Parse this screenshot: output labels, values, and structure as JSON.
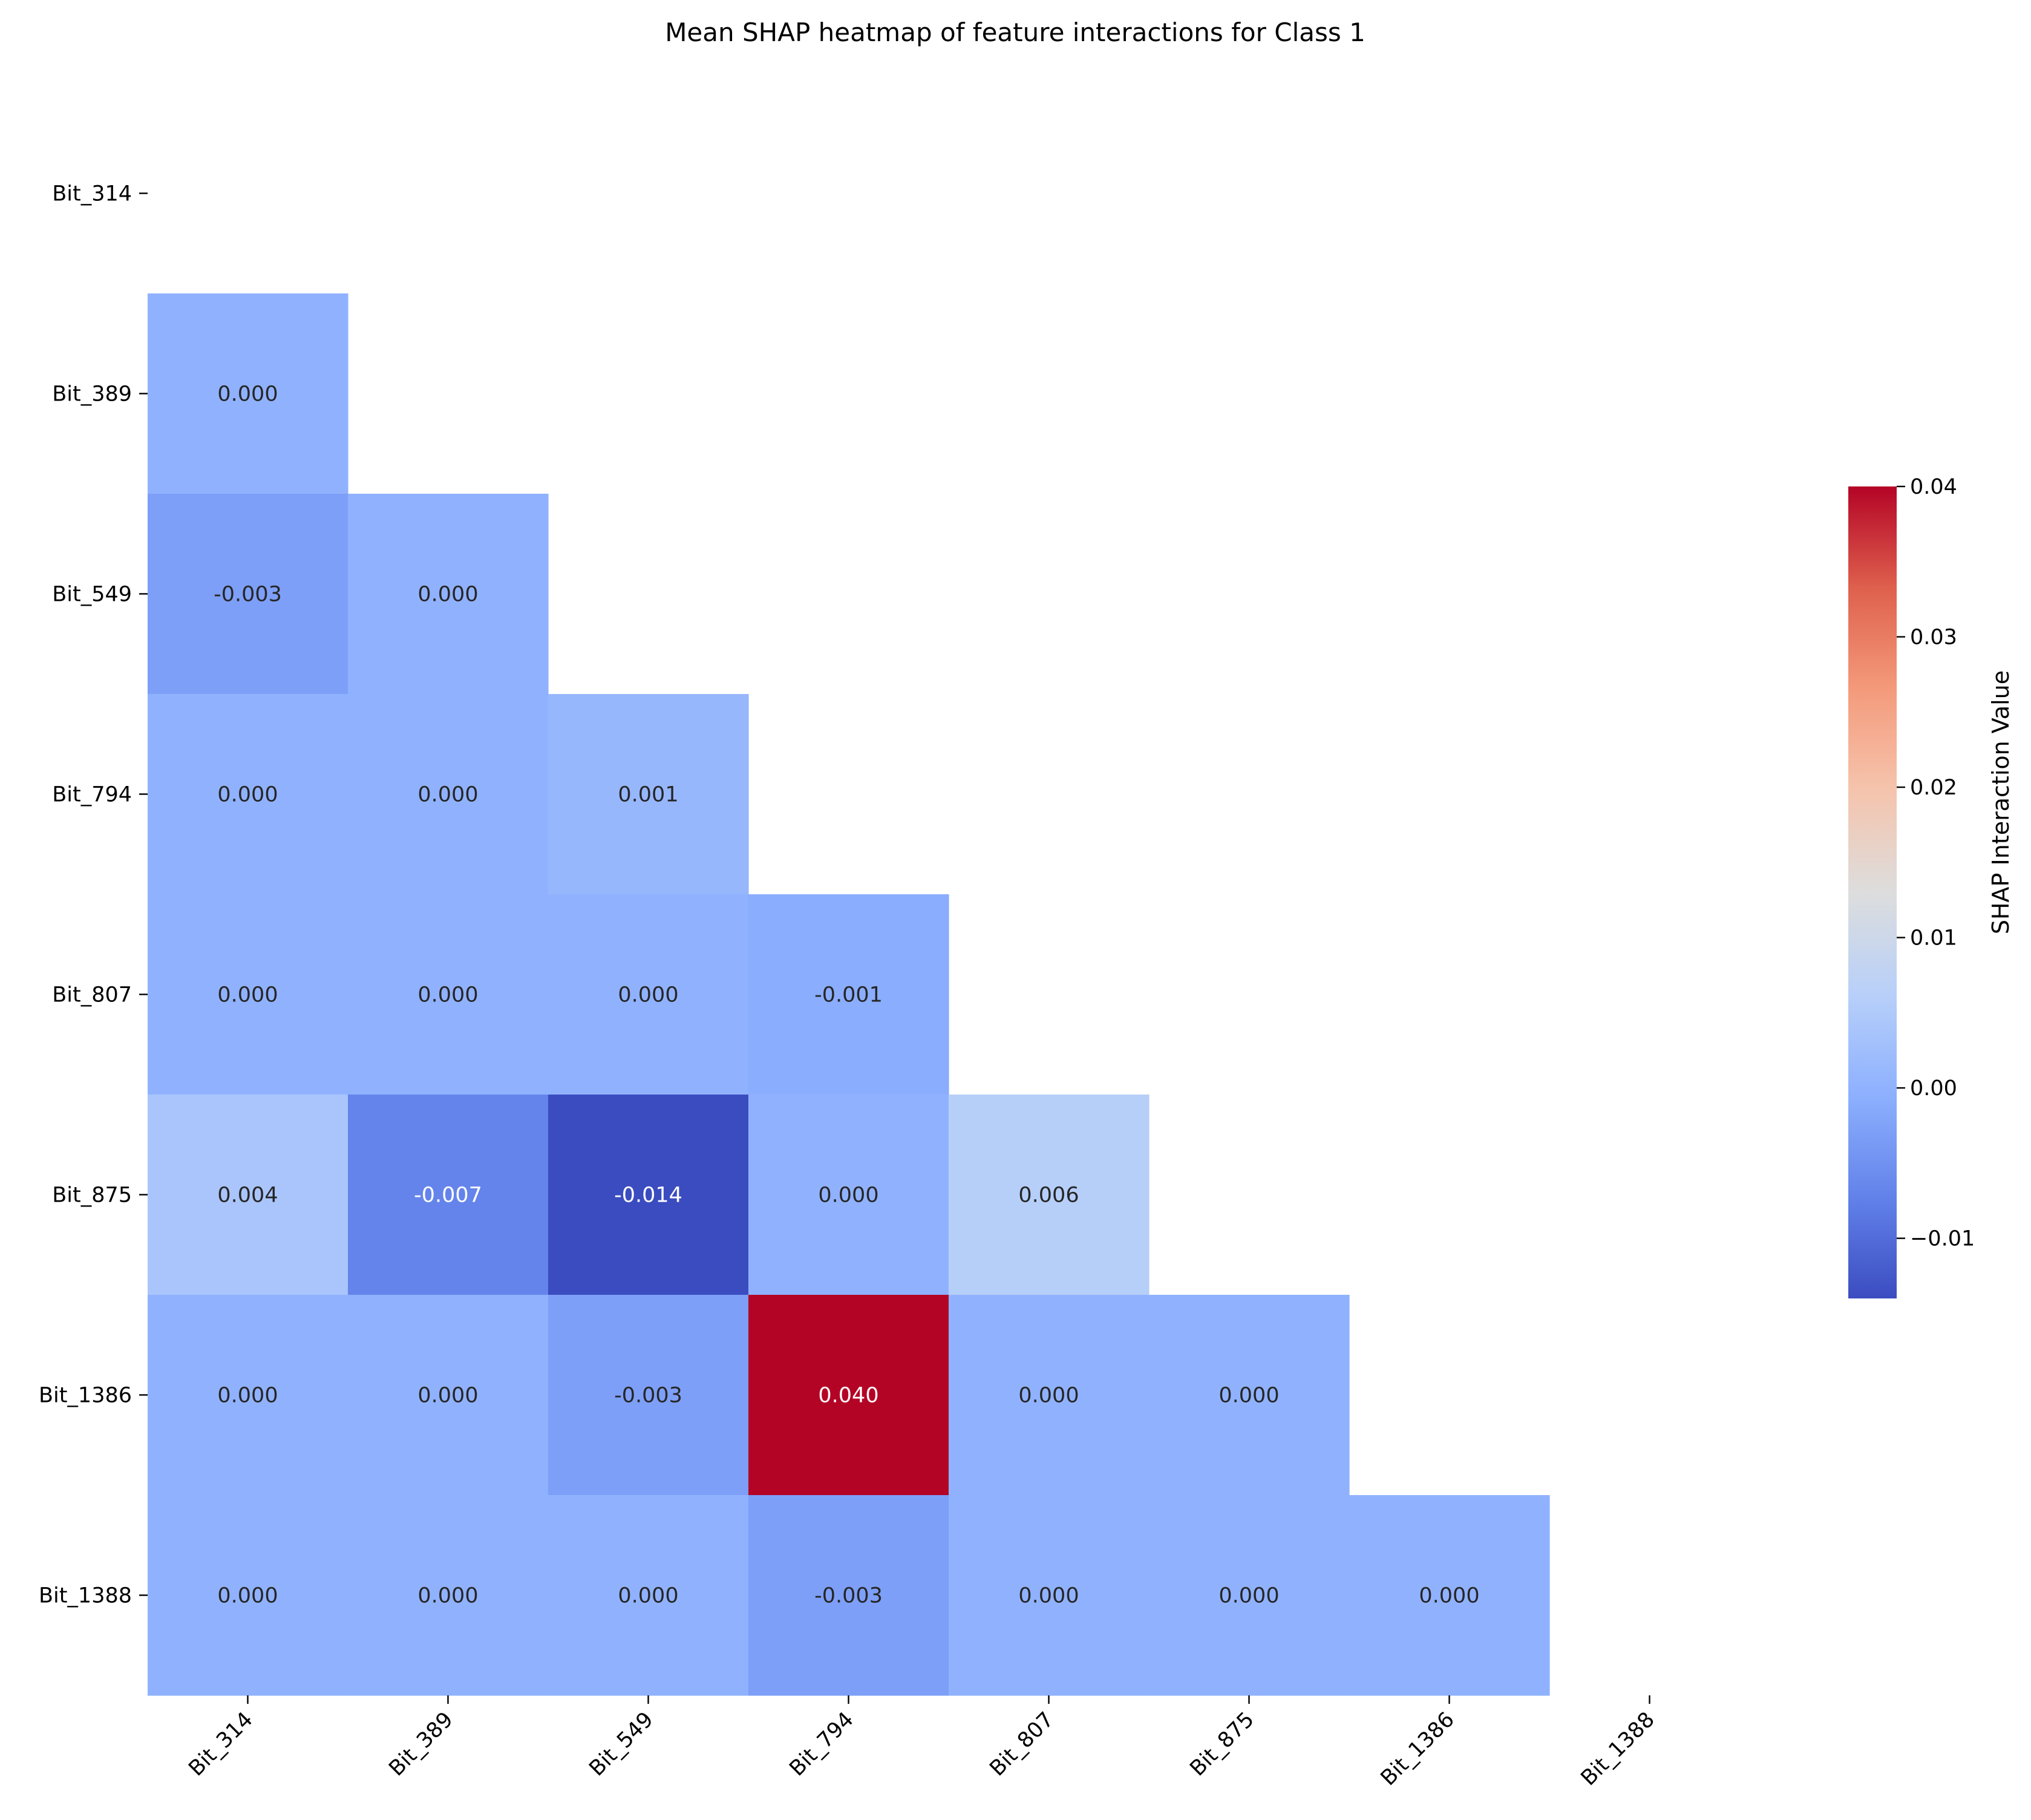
{
  "chart_data": {
    "type": "heatmap",
    "title": "Mean SHAP heatmap of feature interactions for Class 1",
    "x_labels": [
      "Bit_314",
      "Bit_389",
      "Bit_549",
      "Bit_794",
      "Bit_807",
      "Bit_875",
      "Bit_1386",
      "Bit_1388"
    ],
    "y_labels": [
      "Bit_314",
      "Bit_389",
      "Bit_549",
      "Bit_794",
      "Bit_807",
      "Bit_875",
      "Bit_1386",
      "Bit_1388"
    ],
    "mask": "upper triangle incl. diagonal (only lower triangle shown)",
    "values": [
      [
        null,
        null,
        null,
        null,
        null,
        null,
        null,
        null
      ],
      [
        0.0,
        null,
        null,
        null,
        null,
        null,
        null,
        null
      ],
      [
        -0.003,
        0.0,
        null,
        null,
        null,
        null,
        null,
        null
      ],
      [
        0.0,
        0.0,
        0.001,
        null,
        null,
        null,
        null,
        null
      ],
      [
        0.0,
        0.0,
        0.0,
        -0.001,
        null,
        null,
        null,
        null
      ],
      [
        0.004,
        -0.007,
        -0.014,
        0.0,
        0.006,
        null,
        null,
        null
      ],
      [
        0.0,
        0.0,
        -0.003,
        0.04,
        0.0,
        0.0,
        null,
        null
      ],
      [
        0.0,
        0.0,
        0.0,
        -0.003,
        0.0,
        0.0,
        0.0,
        null
      ]
    ],
    "value_labels": [
      [
        null,
        null,
        null,
        null,
        null,
        null,
        null,
        null
      ],
      [
        "0.000",
        null,
        null,
        null,
        null,
        null,
        null,
        null
      ],
      [
        "-0.003",
        "0.000",
        null,
        null,
        null,
        null,
        null,
        null
      ],
      [
        "0.000",
        "0.000",
        "0.001",
        null,
        null,
        null,
        null,
        null
      ],
      [
        "0.000",
        "0.000",
        "0.000",
        "-0.001",
        null,
        null,
        null,
        null
      ],
      [
        "0.004",
        "-0.007",
        "-0.014",
        "0.000",
        "0.006",
        null,
        null,
        null
      ],
      [
        "0.000",
        "0.000",
        "-0.003",
        "0.040",
        "0.000",
        "0.000",
        null,
        null
      ],
      [
        "0.000",
        "0.000",
        "0.000",
        "-0.003",
        "0.000",
        "0.000",
        "0.000",
        null
      ]
    ],
    "colormap": "coolwarm",
    "colorbar": {
      "label": "SHAP Interaction Value",
      "range": [
        -0.014,
        0.04
      ],
      "ticks": [
        -0.01,
        0.0,
        0.01,
        0.02,
        0.03,
        0.04
      ],
      "tick_labels": [
        "−0.01",
        "0.00",
        "0.01",
        "0.02",
        "0.03",
        "0.04"
      ],
      "placement": "right"
    },
    "grid": false
  }
}
